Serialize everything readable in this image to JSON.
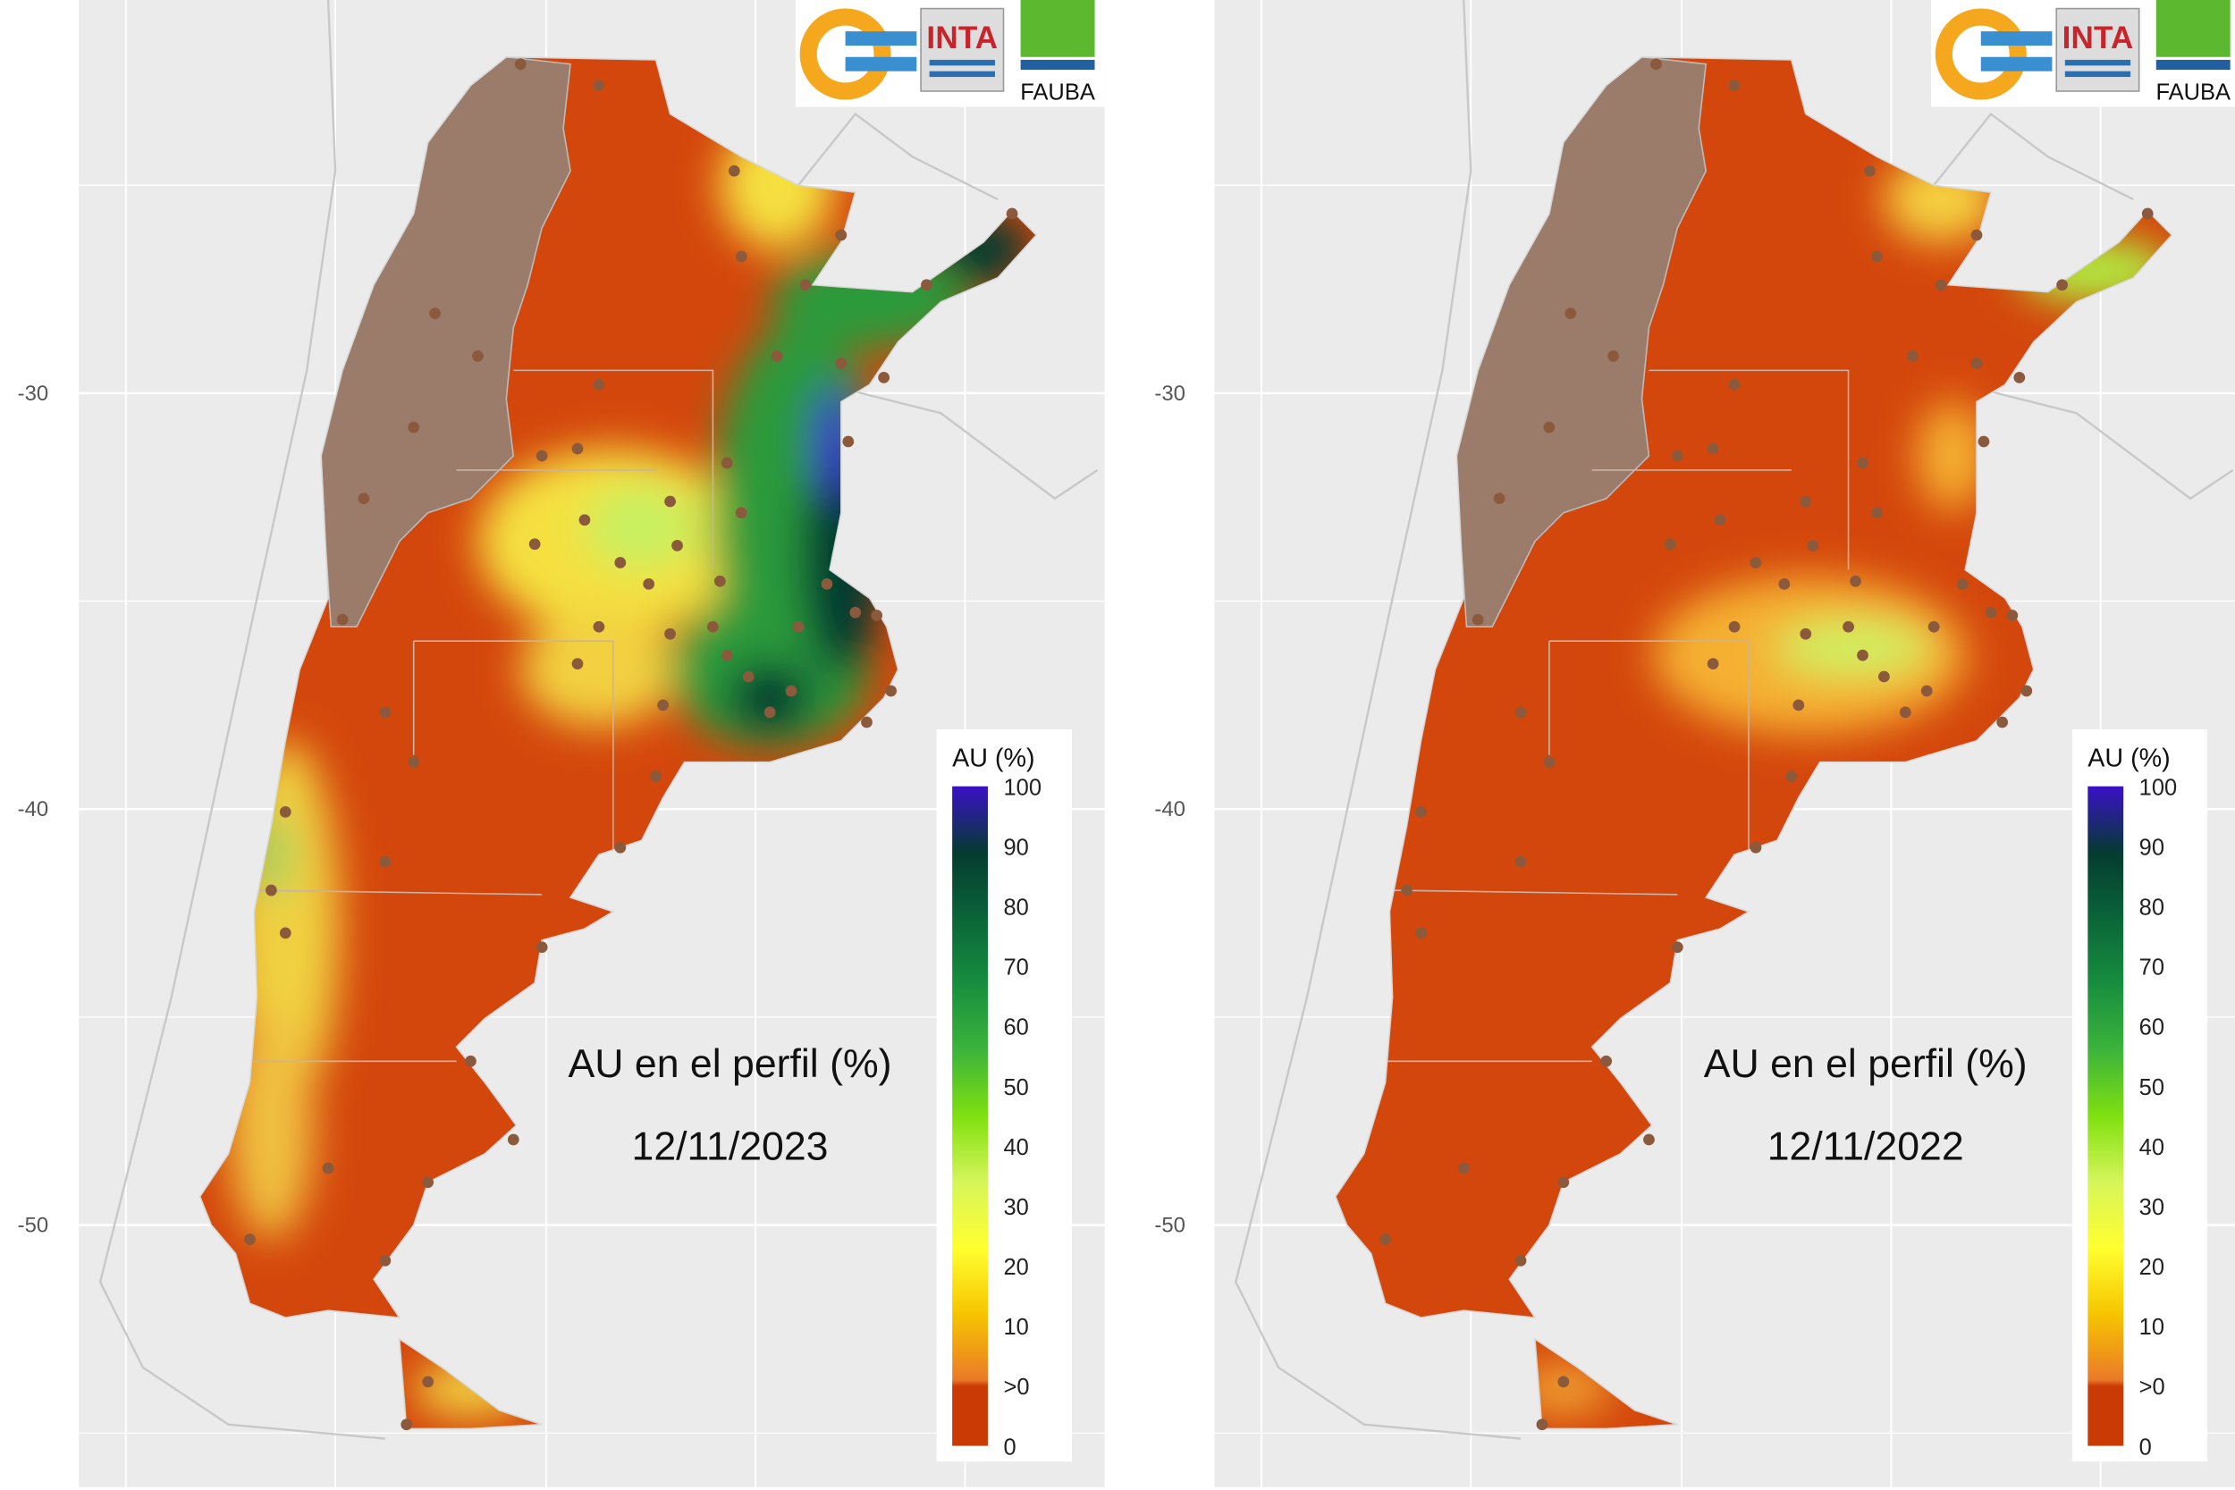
{
  "chart_data": [
    {
      "type": "heatmap",
      "title": "AU en el perfil (%)",
      "date": "12/11/2023",
      "legend_title": "AU (%)",
      "legend_ticks": [
        "100",
        "90",
        "80",
        "70",
        "60",
        "50",
        "40",
        "30",
        "20",
        "10",
        ">0",
        "0"
      ],
      "y_axis_ticks": [
        "-30",
        "-40",
        "-50"
      ],
      "logos": [
        "INTA",
        "FAUBA"
      ],
      "summary": "wet east (Entre Rios, Buenos Aires) 60-100%, dry west and south near 0-10%"
    },
    {
      "type": "heatmap",
      "title": "AU en el perfil (%)",
      "date": "12/11/2022",
      "legend_title": "AU (%)",
      "legend_ticks": [
        "100",
        "90",
        "80",
        "70",
        "60",
        "50",
        "40",
        "30",
        "20",
        "10",
        ">0",
        "0"
      ],
      "y_axis_ticks": [
        "-30",
        "-40",
        "-50"
      ],
      "logos": [
        "INTA",
        "FAUBA"
      ],
      "summary": "mostly 0-10%, small patches 20-40% in central Buenos Aires and Misiones"
    }
  ],
  "colors": {
    "panel_bg": "#ebebeb",
    "dry": "#d4470c",
    "andes": "#9b7b6a",
    "station": "#8b5a3c",
    "scale": [
      "#c93a05",
      "#c93a05",
      "#ea7a28",
      "#f7c500",
      "#ffff30",
      "#d6f55a",
      "#80e010",
      "#3cb43c",
      "#178e3e",
      "#0a6538",
      "#053b30",
      "#3a10c8"
    ]
  }
}
